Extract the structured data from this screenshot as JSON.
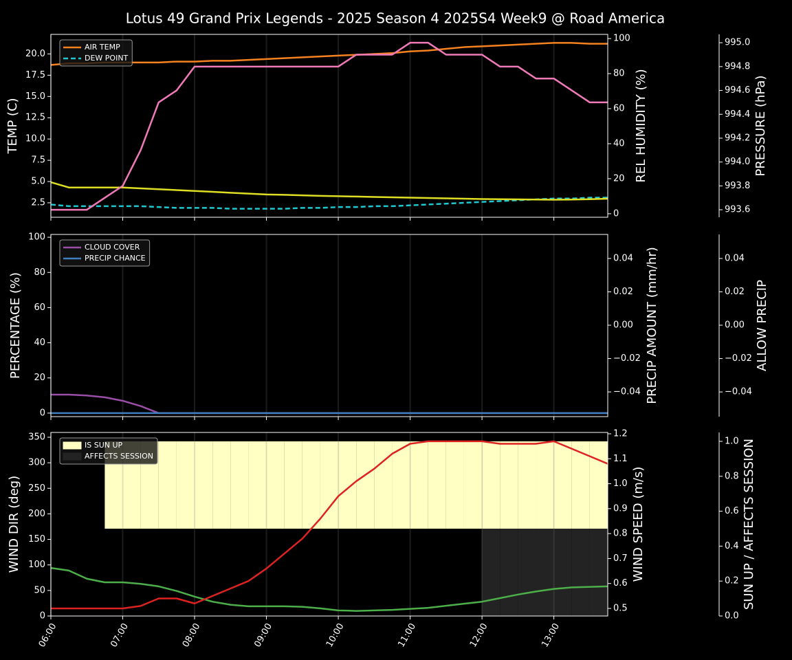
{
  "title": "Lotus 49 Grand Prix Legends - 2025 Season 4 2025S4 Week9 @ Road America",
  "chart_data": [
    {
      "type": "line",
      "x": [
        6,
        6.25,
        6.5,
        6.75,
        7,
        7.25,
        7.5,
        7.75,
        8,
        8.25,
        8.5,
        8.75,
        9,
        9.25,
        9.5,
        9.75,
        10,
        10.25,
        10.5,
        10.75,
        11,
        11.25,
        11.5,
        11.75,
        12,
        12.25,
        12.5,
        12.75,
        13,
        13.25,
        13.5,
        13.75
      ],
      "xlim": [
        6,
        13.75
      ],
      "xticks": [
        6,
        7,
        8,
        9,
        10,
        11,
        12,
        13
      ],
      "grid": true,
      "legend": "upper left",
      "ylabel": "TEMP (C)",
      "ylabel_color": "#ffffff",
      "ylim": [
        0.8,
        22.3
      ],
      "yticks": [
        2.5,
        {
          "value": 5,
          "label": "5.0"
        },
        7.5,
        {
          "value": 10,
          "label": "10.0"
        },
        12.5,
        {
          "value": 15,
          "label": "15.0"
        },
        17.5,
        {
          "value": 20,
          "label": "20.0"
        }
      ],
      "y2label": "REL HUMIDITY (%)",
      "y2label_color": "#dede22",
      "y2lim": [
        -2,
        102.4
      ],
      "y2ticks": [
        0,
        20,
        40,
        60,
        80,
        100
      ],
      "y3label": "PRESSURE (hPa)",
      "y3label_color": "#f07ab8",
      "y3lim": [
        993.537,
        995.07
      ],
      "y3ticks": [
        993.6,
        993.8,
        {
          "value": 994,
          "label": "994.0"
        },
        994.2,
        994.4,
        994.6,
        994.8,
        {
          "value": 995,
          "label": "995.0"
        }
      ],
      "series": [
        {
          "name": "AIR TEMP",
          "type": "line",
          "axis": "y",
          "color": "#f5821f",
          "style": "solid",
          "values": [
            18.7,
            18.9,
            18.9,
            19.0,
            19.0,
            19.0,
            19.0,
            19.1,
            19.1,
            19.2,
            19.2,
            19.3,
            19.4,
            19.5,
            19.6,
            19.7,
            19.8,
            19.9,
            20.0,
            20.1,
            20.3,
            20.4,
            20.6,
            20.8,
            20.9,
            21.0,
            21.1,
            21.2,
            21.3,
            21.3,
            21.2,
            21.2
          ]
        },
        {
          "name": "DEW POINT",
          "type": "line",
          "axis": "y",
          "color": "#1fc8d0",
          "style": "dashed",
          "values": [
            2.3,
            2.1,
            2.1,
            2.1,
            2.1,
            2.1,
            2.0,
            1.9,
            1.9,
            1.9,
            1.8,
            1.8,
            1.8,
            1.8,
            1.9,
            1.9,
            2.0,
            2.0,
            2.1,
            2.1,
            2.2,
            2.3,
            2.4,
            2.5,
            2.6,
            2.7,
            2.8,
            2.9,
            3.0,
            3.0,
            3.1,
            3.1
          ]
        },
        {
          "type": "line",
          "axis": "y2",
          "color": "#dede22",
          "style": "solid",
          "in_legend": false,
          "values": [
            18,
            15,
            15,
            15,
            15,
            14.5,
            14,
            13.5,
            13,
            12.5,
            12,
            11.5,
            11,
            10.8,
            10.5,
            10.2,
            10,
            9.8,
            9.6,
            9.4,
            9.2,
            9,
            8.8,
            8.6,
            8.4,
            8.3,
            8.2,
            8.1,
            8,
            8.1,
            8.3,
            8.6
          ]
        },
        {
          "type": "line",
          "axis": "y3",
          "color": "#f07ab8",
          "style": "solid",
          "in_legend": false,
          "values": [
            993.6,
            993.6,
            993.6,
            993.7,
            993.8,
            994.1,
            994.5,
            994.6,
            994.8,
            994.8,
            994.8,
            994.8,
            994.8,
            994.8,
            994.8,
            994.8,
            994.8,
            994.9,
            994.9,
            994.9,
            995.0,
            995.0,
            994.9,
            994.9,
            994.9,
            994.8,
            994.8,
            994.7,
            994.7,
            994.6,
            994.5,
            994.5
          ]
        }
      ]
    },
    {
      "type": "line",
      "x": [
        6,
        6.25,
        6.5,
        6.75,
        7,
        7.25,
        7.5,
        7.75,
        8,
        8.25,
        8.5,
        8.75,
        9,
        9.25,
        9.5,
        9.75,
        10,
        10.25,
        10.5,
        10.75,
        11,
        11.25,
        11.5,
        11.75,
        12,
        12.25,
        12.5,
        12.75,
        13,
        13.25,
        13.5,
        13.75
      ],
      "xlim": [
        6,
        13.75
      ],
      "xticks": [
        6,
        7,
        8,
        9,
        10,
        11,
        12,
        13
      ],
      "grid": true,
      "legend": "upper left",
      "ylabel": "PERCENTAGE (%)",
      "ylabel_color": "#ffffff",
      "ylim": [
        -2,
        101.6
      ],
      "yticks": [
        0,
        20,
        40,
        60,
        80,
        100
      ],
      "y2label": "PRECIP AMOUNT (mm/hr)",
      "y2label_color": "#a0522d",
      "y2lim": [
        -0.0548,
        0.0544
      ],
      "y2ticks": [
        {
          "value": -0.04,
          "label": "−0.04"
        },
        {
          "value": -0.02,
          "label": "−0.02"
        },
        {
          "value": 0,
          "label": "0.00"
        },
        0.02,
        0.04
      ],
      "y3label": "ALLOW PRECIP",
      "y3label_color": "#ffffff",
      "y3lim": [
        -0.0548,
        0.0544
      ],
      "y3ticks": [
        {
          "value": -0.04,
          "label": "−0.04"
        },
        {
          "value": -0.02,
          "label": "−0.02"
        },
        {
          "value": 0,
          "label": "0.00"
        },
        0.02,
        0.04
      ],
      "series": [
        {
          "name": "CLOUD COVER",
          "type": "line",
          "axis": "y",
          "color": "#9a4ea8",
          "style": "solid",
          "values": [
            10.5,
            10.5,
            10,
            9,
            7,
            4,
            0,
            0,
            0,
            0,
            0,
            0,
            0,
            0,
            0,
            0,
            0,
            0,
            0,
            0,
            0,
            0,
            0,
            0,
            0,
            0,
            0,
            0,
            0,
            0,
            0,
            0
          ]
        },
        {
          "name": "PRECIP CHANCE",
          "type": "line",
          "axis": "y",
          "color": "#3f7fbf",
          "style": "solid",
          "values": [
            0,
            0,
            0,
            0,
            0,
            0,
            0,
            0,
            0,
            0,
            0,
            0,
            0,
            0,
            0,
            0,
            0,
            0,
            0,
            0,
            0,
            0,
            0,
            0,
            0,
            0,
            0,
            0,
            0,
            0,
            0,
            0
          ]
        }
      ]
    },
    {
      "type": "line",
      "x": [
        6,
        6.25,
        6.5,
        6.75,
        7,
        7.25,
        7.5,
        7.75,
        8,
        8.25,
        8.5,
        8.75,
        9,
        9.25,
        9.5,
        9.75,
        10,
        10.25,
        10.5,
        10.75,
        11,
        11.25,
        11.5,
        11.75,
        12,
        12.25,
        12.5,
        12.75,
        13,
        13.25,
        13.5,
        13.75
      ],
      "xlim": [
        6,
        13.75
      ],
      "xticks": [
        {
          "value": 6,
          "label": "06:00"
        },
        {
          "value": 7,
          "label": "07:00"
        },
        {
          "value": 8,
          "label": "08:00"
        },
        {
          "value": 9,
          "label": "09:00"
        },
        {
          "value": 10,
          "label": "10:00"
        },
        {
          "value": 11,
          "label": "11:00"
        },
        {
          "value": 12,
          "label": "12:00"
        },
        {
          "value": 13,
          "label": "13:00"
        }
      ],
      "grid": true,
      "legend": "upper left",
      "ylabel": "WIND DIR (deg)",
      "ylabel_color": "#4daf4a",
      "ylim": [
        0,
        359.4
      ],
      "yticks": [
        0,
        50,
        100,
        150,
        200,
        250,
        300,
        350
      ],
      "y2label": "WIND SPEED (m/s)",
      "y2label_color": "#dd2222",
      "y2lim": [
        0.4697,
        1.2055
      ],
      "y2ticks": [
        0.5,
        0.6,
        0.7,
        0.8,
        0.9,
        {
          "value": 1,
          "label": "1.0"
        },
        1.1,
        1.2
      ],
      "y3label": "SUN UP / AFFECTS SESSION",
      "y3label_color": "#ffffff",
      "y3lim": [
        0,
        1.051
      ],
      "y3ticks": [
        {
          "value": 0,
          "label": "0.0"
        },
        0.2,
        0.4,
        0.6,
        0.8,
        {
          "value": 1,
          "label": "1.0"
        }
      ],
      "series": [
        {
          "name": "IS SUN UP",
          "type": "fill",
          "axis": "y3",
          "color": "#ffffc4",
          "values": [
            0,
            0,
            0,
            1,
            1,
            1,
            1,
            1,
            1,
            1,
            1,
            1,
            1,
            1,
            1,
            1,
            1,
            1,
            1,
            1,
            1,
            1,
            1,
            1,
            1,
            1,
            1,
            1,
            1,
            1,
            1,
            1
          ]
        },
        {
          "name": "AFFECTS SESSION",
          "type": "fill",
          "axis": "y3",
          "color": "#232323",
          "values": [
            0,
            0,
            0,
            0,
            0,
            0,
            0,
            0,
            0,
            0,
            0,
            0,
            0,
            0,
            0,
            0,
            0,
            0,
            0,
            0,
            0,
            0,
            0,
            0,
            1,
            1,
            1,
            1,
            1,
            1,
            1,
            1
          ]
        },
        {
          "type": "line",
          "axis": "y",
          "color": "#4daf4a",
          "style": "solid",
          "in_legend": false,
          "values": [
            94,
            89,
            73,
            66,
            66,
            63,
            58,
            49,
            38,
            28,
            22,
            19,
            19,
            19,
            18,
            15,
            11,
            10,
            11,
            12,
            14,
            16,
            20,
            24,
            28,
            35,
            42,
            48,
            53,
            56,
            57,
            58
          ]
        },
        {
          "type": "line",
          "axis": "y2",
          "color": "#dd2222",
          "style": "solid",
          "in_legend": false,
          "values": [
            0.5,
            0.5,
            0.5,
            0.5,
            0.5,
            0.51,
            0.54,
            0.54,
            0.52,
            0.55,
            0.58,
            0.61,
            0.66,
            0.72,
            0.78,
            0.86,
            0.95,
            1.01,
            1.06,
            1.12,
            1.16,
            1.17,
            1.17,
            1.17,
            1.17,
            1.16,
            1.16,
            1.16,
            1.17,
            1.14,
            1.11,
            1.08
          ]
        }
      ]
    }
  ]
}
